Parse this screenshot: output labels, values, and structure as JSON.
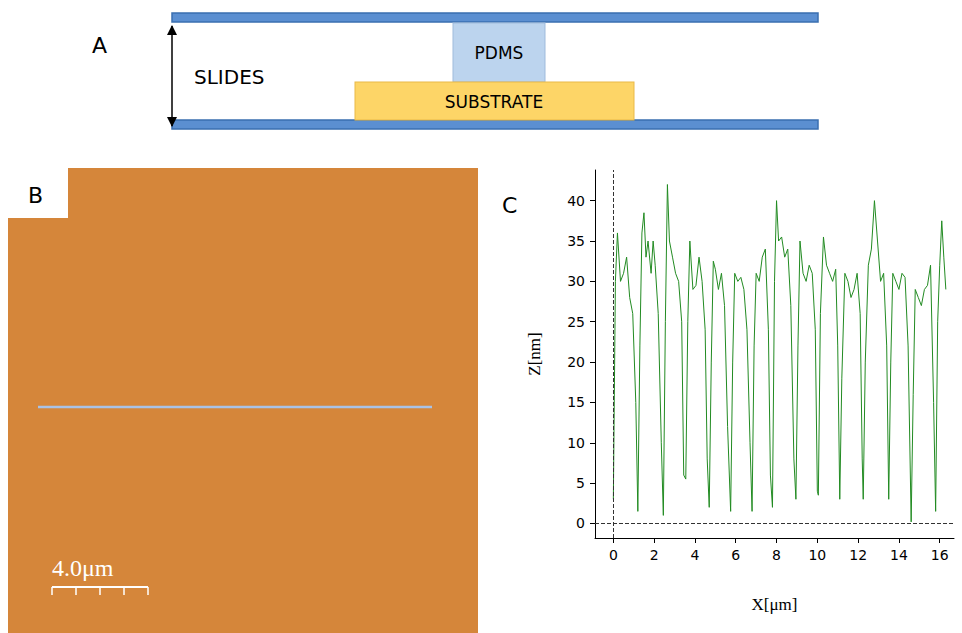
{
  "panels": [
    {
      "panel_label": "A",
      "type": "diagram",
      "texts": {
        "slides": "SLIDES",
        "top_layer": "PDMS",
        "bottom_layer": "SUBSTRATE"
      }
    },
    {
      "panel_label": "B",
      "type": "image",
      "scale_bar": "4.0μm"
    }
  ],
  "chart_data": {
    "panel_label": "C",
    "type": "line",
    "x_label": "X[μm]",
    "y_label": "Z[nm]",
    "color": "#228b22",
    "grid": false,
    "xlim": [
      -0.9,
      16.7
    ],
    "ylim": [
      -1.8,
      43.8
    ],
    "xticks": [
      0,
      2,
      4,
      6,
      8,
      10,
      12,
      14,
      16
    ],
    "yticks": [
      0,
      5,
      10,
      15,
      20,
      25,
      30,
      35,
      40
    ],
    "x": [
      0,
      0.1,
      0.2,
      0.35,
      0.5,
      0.65,
      0.8,
      0.95,
      1.1,
      1.2,
      1.3,
      1.4,
      1.5,
      1.6,
      1.7,
      1.85,
      1.95,
      2.05,
      2.2,
      2.35,
      2.45,
      2.55,
      2.65,
      2.75,
      2.9,
      3.05,
      3.2,
      3.35,
      3.45,
      3.55,
      3.65,
      3.75,
      3.9,
      4.05,
      4.2,
      4.35,
      4.5,
      4.6,
      4.7,
      4.8,
      4.9,
      5.0,
      5.15,
      5.3,
      5.45,
      5.6,
      5.75,
      5.85,
      5.95,
      6.1,
      6.25,
      6.4,
      6.55,
      6.7,
      6.8,
      6.9,
      7.0,
      7.15,
      7.3,
      7.45,
      7.6,
      7.7,
      7.8,
      7.9,
      8.0,
      8.1,
      8.25,
      8.4,
      8.55,
      8.7,
      8.85,
      8.95,
      9.05,
      9.15,
      9.3,
      9.45,
      9.6,
      9.75,
      9.9,
      10.0,
      10.05,
      10.15,
      10.3,
      10.45,
      10.6,
      10.75,
      10.9,
      11.0,
      11.1,
      11.2,
      11.35,
      11.5,
      11.65,
      11.8,
      11.95,
      12.1,
      12.2,
      12.25,
      12.35,
      12.5,
      12.65,
      12.8,
      12.95,
      13.1,
      13.25,
      13.4,
      13.5,
      13.6,
      13.7,
      13.85,
      14.0,
      14.15,
      14.3,
      14.45,
      14.6,
      14.7,
      14.8,
      14.95,
      15.1,
      15.25,
      15.4,
      15.55,
      15.7,
      15.8,
      15.9,
      16.0,
      16.1,
      16.2,
      16.3
    ],
    "values": [
      3,
      30,
      36,
      30,
      31,
      33,
      28,
      26,
      15,
      1.5,
      22,
      36,
      38.5,
      33,
      35,
      31,
      35,
      32,
      26,
      10,
      1,
      25,
      42,
      35,
      33,
      31,
      30,
      25,
      6,
      5.5,
      25,
      35,
      29,
      29.5,
      33,
      30,
      24,
      8,
      2,
      20,
      32.5,
      31.5,
      29,
      31,
      27,
      12,
      1.5,
      20,
      31,
      30,
      30.5,
      29,
      24,
      10,
      1.5,
      22,
      31,
      30,
      33,
      34,
      24,
      6,
      2,
      30,
      40,
      35,
      35.5,
      33,
      34,
      27,
      8,
      3,
      22,
      35,
      31,
      30,
      32,
      31,
      24,
      4,
      3.5,
      26,
      35.5,
      32,
      31,
      30,
      31.5,
      22,
      3,
      18,
      31,
      30,
      28,
      29,
      31,
      26,
      8,
      3,
      20,
      32,
      34,
      40,
      35,
      30,
      31,
      22,
      3,
      20,
      31,
      30,
      29,
      31,
      30.5,
      22,
      0.2,
      16,
      29,
      28,
      27,
      29,
      29.5,
      32,
      15,
      1.5,
      25,
      32,
      37.5,
      33,
      29
    ]
  }
}
